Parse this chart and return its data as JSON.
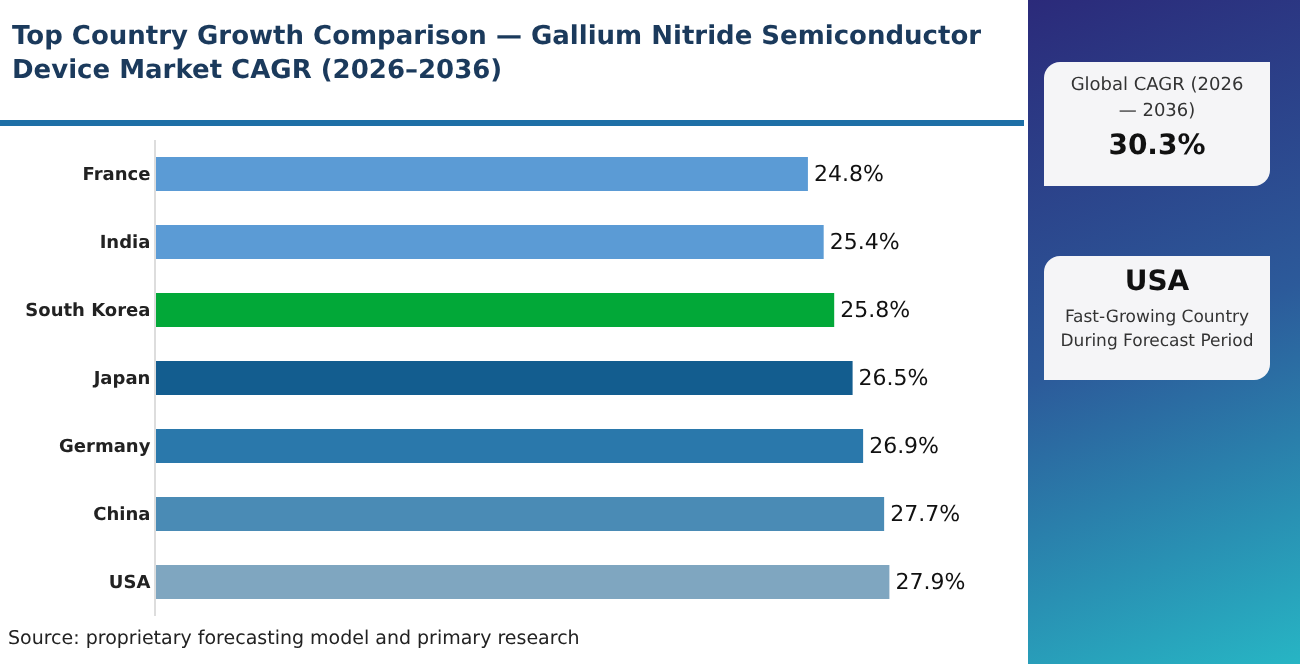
{
  "chart_data": {
    "type": "bar",
    "orientation": "horizontal",
    "title": "Top Country Growth Comparison — Gallium Nitride Semiconductor Device Market CAGR (2026–2036)",
    "categories": [
      "France",
      "India",
      "South Korea",
      "Japan",
      "Germany",
      "China",
      "USA"
    ],
    "values": [
      24.8,
      25.4,
      25.8,
      26.5,
      26.9,
      27.7,
      27.9
    ],
    "colors": [
      "#5b9bd5",
      "#5b9bd5",
      "#02a838",
      "#135d8f",
      "#2a78ab",
      "#4a8bb5",
      "#7fa6c0"
    ],
    "value_labels": [
      "24.8%",
      "25.4%",
      "25.8%",
      "26.5%",
      "26.9%",
      "27.7%",
      "27.9%"
    ],
    "tick_labels": "y",
    "grid": false,
    "legend": false,
    "annotations": [
      "Source: proprietary forecasting model and primary research",
      "Global CAGR (2026 — 2036)",
      "30.3%",
      "USA",
      "Fast-Growing Country During Forecast Period"
    ]
  }
}
